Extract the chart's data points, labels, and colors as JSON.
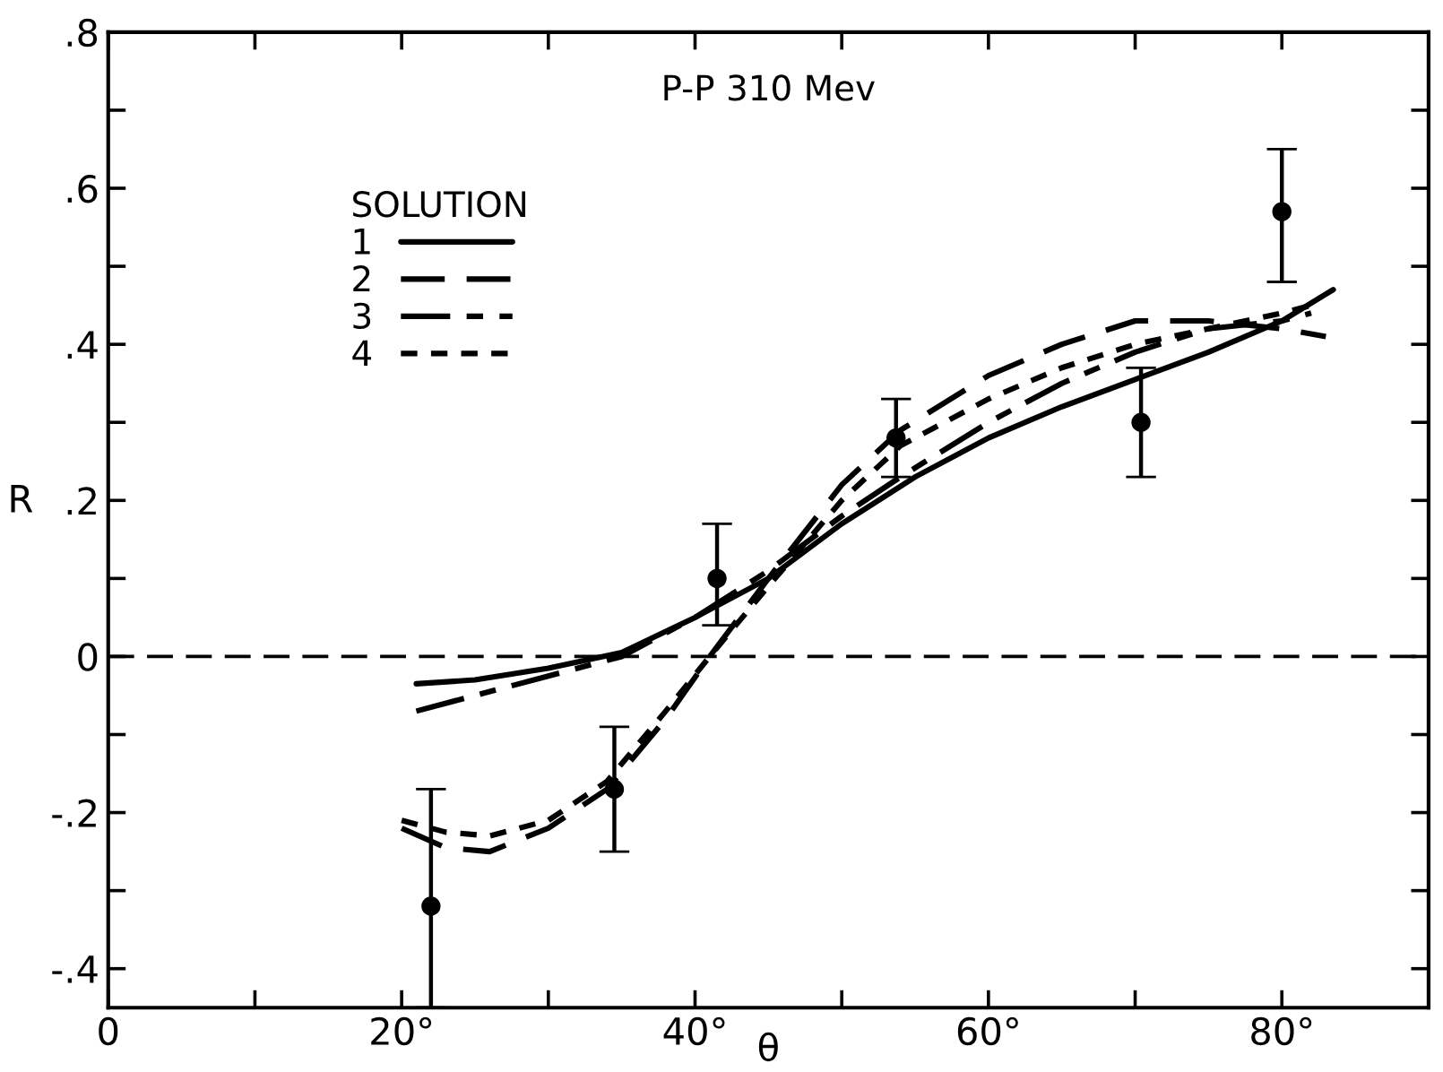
{
  "chart_data": {
    "type": "line",
    "title": "P-P 310 Mev",
    "xlabel": "θ",
    "ylabel": "R",
    "legend_title": "SOLUTION",
    "legend": "top left",
    "grid": false,
    "xlim": [
      0,
      90
    ],
    "xticks": [
      {
        "value": 0,
        "label": "0"
      },
      {
        "value": 10,
        "label": null
      },
      {
        "value": 20,
        "label": "20°"
      },
      {
        "value": 30,
        "label": null
      },
      {
        "value": 40,
        "label": "40°"
      },
      {
        "value": 50,
        "label": null
      },
      {
        "value": 60,
        "label": "60°"
      },
      {
        "value": 70,
        "label": null
      },
      {
        "value": 80,
        "label": "80°"
      },
      {
        "value": 90,
        "label": null
      }
    ],
    "ylim": [
      -0.45,
      0.8
    ],
    "yticks": [
      {
        "value": -0.4,
        "label": "-.4"
      },
      {
        "value": -0.3,
        "label": null
      },
      {
        "value": -0.2,
        "label": "-.2"
      },
      {
        "value": -0.1,
        "label": null
      },
      {
        "value": 0,
        "label": "0"
      },
      {
        "value": 0.1,
        "label": null
      },
      {
        "value": 0.2,
        "label": ".2"
      },
      {
        "value": 0.3,
        "label": null
      },
      {
        "value": 0.4,
        "label": ".4"
      },
      {
        "value": 0.5,
        "label": null
      },
      {
        "value": 0.6,
        "label": ".6"
      },
      {
        "value": 0.7,
        "label": null
      },
      {
        "value": 0.8,
        "label": ".8"
      }
    ],
    "ref_lines": [
      {
        "axis": "y",
        "value": 0,
        "label": null,
        "color": "#000000",
        "line_style": "dashed"
      }
    ],
    "series": [
      {
        "name": "1",
        "color": "#000000",
        "line_style": "solid",
        "marker": "none",
        "x": [
          21,
          25,
          30,
          35,
          40,
          45,
          50,
          55,
          60,
          65,
          70,
          75,
          80,
          83.5
        ],
        "values": [
          -0.035,
          -0.03,
          -0.015,
          0.005,
          0.05,
          0.1,
          0.17,
          0.23,
          0.28,
          0.32,
          0.355,
          0.39,
          0.43,
          0.47
        ]
      },
      {
        "name": "2",
        "color": "#000000",
        "line_style": "dashed",
        "marker": "none",
        "x": [
          20,
          23,
          26,
          30,
          34,
          38,
          41,
          45,
          50,
          54,
          60,
          65,
          70,
          75,
          80,
          83
        ],
        "values": [
          -0.22,
          -0.245,
          -0.25,
          -0.22,
          -0.17,
          -0.08,
          0.0,
          0.1,
          0.22,
          0.29,
          0.36,
          0.4,
          0.43,
          0.43,
          0.42,
          0.41
        ]
      },
      {
        "name": "3",
        "color": "#000000",
        "line_style": "dashdot",
        "marker": "none",
        "x": [
          21,
          25,
          30,
          35,
          40,
          45,
          50,
          54,
          60,
          65,
          70,
          75,
          80,
          82
        ],
        "values": [
          -0.07,
          -0.05,
          -0.025,
          0.0,
          0.05,
          0.11,
          0.18,
          0.23,
          0.3,
          0.35,
          0.39,
          0.42,
          0.43,
          0.44
        ]
      },
      {
        "name": "4",
        "color": "#000000",
        "line_style": "dotted",
        "marker": "none",
        "x": [
          20,
          23,
          26,
          30,
          34,
          38,
          41,
          45,
          50,
          54,
          60,
          65,
          70,
          75,
          80,
          82
        ],
        "values": [
          -0.21,
          -0.225,
          -0.23,
          -0.21,
          -0.16,
          -0.07,
          0.0,
          0.09,
          0.2,
          0.27,
          0.33,
          0.37,
          0.4,
          0.42,
          0.44,
          0.45
        ]
      },
      {
        "type": "scatter",
        "color": "#000000",
        "marker": "circle",
        "x": [
          22,
          34.5,
          41.5,
          53.7,
          70.4,
          80
        ],
        "values": [
          -0.32,
          -0.17,
          0.1,
          0.28,
          0.3,
          0.57
        ],
        "errors": [
          [
            -0.45,
            -0.17
          ],
          [
            -0.25,
            -0.09
          ],
          [
            0.04,
            0.17
          ],
          [
            0.23,
            0.33
          ],
          [
            0.23,
            0.37
          ],
          [
            0.48,
            0.65
          ]
        ]
      }
    ]
  }
}
